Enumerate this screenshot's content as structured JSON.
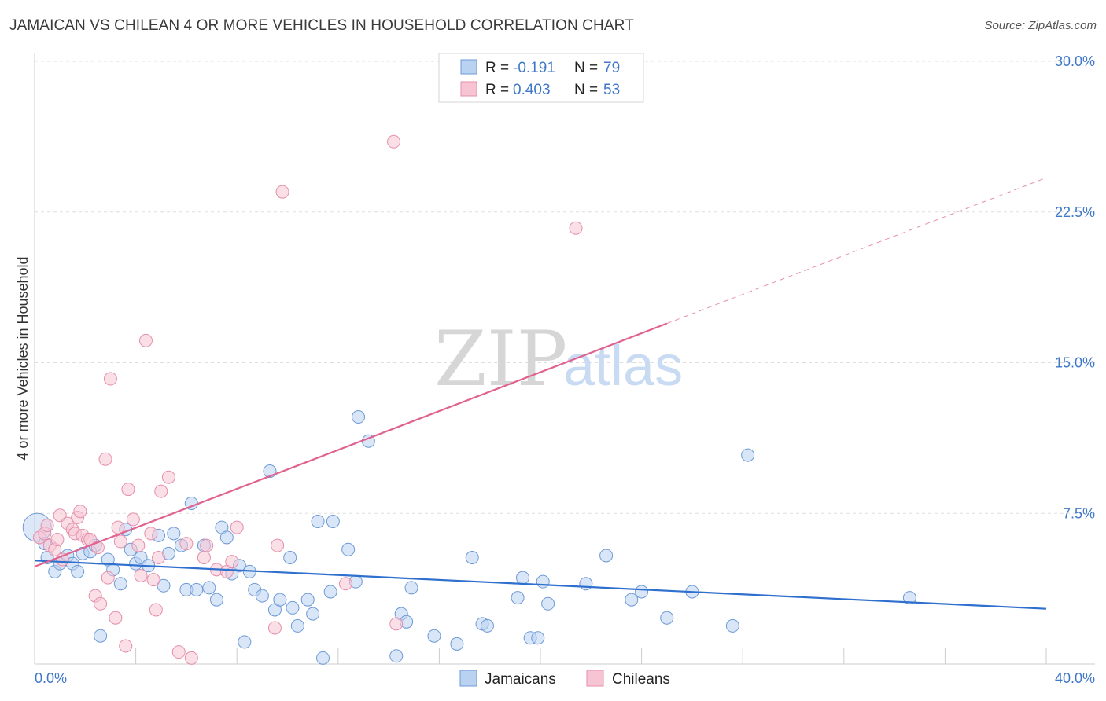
{
  "title": "JAMAICAN VS CHILEAN 4 OR MORE VEHICLES IN HOUSEHOLD CORRELATION CHART",
  "source": "Source: ZipAtlas.com",
  "watermark": {
    "zip": "ZIP",
    "atlas": "atlas"
  },
  "colors": {
    "blue_fill": "#b9d2f2",
    "blue_stroke": "#6d9ad6",
    "blue_line": "#2f6fce",
    "pink_fill": "#f7c4d3",
    "pink_stroke": "#e58fab",
    "pink_line": "#e0628f",
    "label_blue": "#3f78c8",
    "grid": "#dddddd"
  },
  "legend_top": {
    "rows": [
      {
        "r_label": "R =",
        "r_value": "-0.191",
        "n_label": "N =",
        "n_value": "79"
      },
      {
        "r_label": "R =",
        "r_value": "0.403",
        "n_label": "N =",
        "n_value": "53"
      }
    ]
  },
  "legend_bottom": [
    {
      "name": "Jamaicans"
    },
    {
      "name": "Chileans"
    }
  ],
  "chart_data": {
    "type": "scatter",
    "title": "JAMAICAN VS CHILEAN 4 OR MORE VEHICLES IN HOUSEHOLD CORRELATION CHART",
    "xlabel": "",
    "ylabel": "4 or more Vehicles in Household",
    "xlim": [
      0,
      40
    ],
    "ylim": [
      0,
      30
    ],
    "x_tick_labels": [
      "0.0%",
      "40.0%"
    ],
    "y_ticks": [
      7.5,
      15.0,
      22.5,
      30.0
    ],
    "y_tick_labels": [
      "7.5%",
      "15.0%",
      "22.5%",
      "30.0%"
    ],
    "grid": "horizontal dashed",
    "series": [
      {
        "name": "Jamaicans",
        "color": "#b9d2f2",
        "points": [
          [
            0.1,
            6.8
          ],
          [
            0.4,
            6.0
          ],
          [
            0.5,
            5.3
          ],
          [
            0.8,
            4.6
          ],
          [
            1.0,
            5.0
          ],
          [
            1.3,
            5.4
          ],
          [
            1.5,
            5.0
          ],
          [
            1.7,
            4.6
          ],
          [
            1.9,
            5.5
          ],
          [
            2.2,
            5.6
          ],
          [
            2.4,
            5.9
          ],
          [
            2.6,
            1.4
          ],
          [
            2.9,
            5.2
          ],
          [
            3.1,
            4.7
          ],
          [
            3.4,
            4.0
          ],
          [
            3.6,
            6.7
          ],
          [
            3.8,
            5.7
          ],
          [
            4.0,
            5.0
          ],
          [
            4.2,
            5.3
          ],
          [
            4.5,
            4.9
          ],
          [
            4.9,
            6.4
          ],
          [
            5.1,
            3.9
          ],
          [
            5.3,
            5.5
          ],
          [
            5.5,
            6.5
          ],
          [
            5.8,
            5.9
          ],
          [
            6.0,
            3.7
          ],
          [
            6.2,
            8.0
          ],
          [
            6.4,
            3.7
          ],
          [
            6.7,
            5.9
          ],
          [
            6.9,
            3.8
          ],
          [
            7.2,
            3.2
          ],
          [
            7.4,
            6.8
          ],
          [
            7.6,
            6.3
          ],
          [
            7.8,
            4.5
          ],
          [
            8.1,
            4.9
          ],
          [
            8.3,
            1.1
          ],
          [
            8.5,
            4.6
          ],
          [
            8.7,
            3.7
          ],
          [
            9.0,
            3.4
          ],
          [
            9.3,
            9.6
          ],
          [
            9.5,
            2.7
          ],
          [
            9.7,
            3.2
          ],
          [
            10.1,
            5.3
          ],
          [
            10.2,
            2.8
          ],
          [
            10.4,
            1.9
          ],
          [
            10.8,
            3.2
          ],
          [
            11.0,
            2.5
          ],
          [
            11.2,
            7.1
          ],
          [
            11.4,
            0.3
          ],
          [
            11.7,
            3.6
          ],
          [
            11.8,
            7.1
          ],
          [
            12.4,
            5.7
          ],
          [
            12.7,
            4.1
          ],
          [
            12.8,
            12.3
          ],
          [
            13.2,
            11.1
          ],
          [
            14.3,
            0.4
          ],
          [
            14.5,
            2.5
          ],
          [
            14.7,
            2.1
          ],
          [
            14.9,
            3.8
          ],
          [
            15.8,
            1.4
          ],
          [
            16.7,
            1.0
          ],
          [
            17.3,
            5.3
          ],
          [
            17.7,
            2.0
          ],
          [
            17.9,
            1.9
          ],
          [
            19.1,
            3.3
          ],
          [
            19.3,
            4.3
          ],
          [
            19.6,
            1.3
          ],
          [
            19.9,
            1.3
          ],
          [
            20.1,
            4.1
          ],
          [
            20.3,
            3.0
          ],
          [
            21.8,
            4.0
          ],
          [
            22.6,
            5.4
          ],
          [
            23.6,
            3.2
          ],
          [
            24.0,
            3.6
          ],
          [
            25.0,
            2.3
          ],
          [
            26.0,
            3.6
          ],
          [
            27.6,
            1.9
          ],
          [
            28.2,
            10.4
          ],
          [
            34.6,
            3.3
          ]
        ],
        "trend": {
          "x": [
            0,
            40
          ],
          "y": [
            5.15,
            2.75
          ]
        }
      },
      {
        "name": "Chileans",
        "color": "#f7c4d3",
        "points": [
          [
            0.2,
            6.3
          ],
          [
            0.4,
            6.5
          ],
          [
            0.5,
            6.9
          ],
          [
            0.6,
            5.9
          ],
          [
            0.8,
            5.7
          ],
          [
            0.9,
            6.2
          ],
          [
            1.0,
            7.4
          ],
          [
            1.1,
            5.2
          ],
          [
            1.3,
            7.0
          ],
          [
            1.5,
            6.7
          ],
          [
            1.6,
            6.5
          ],
          [
            1.7,
            7.3
          ],
          [
            1.8,
            7.6
          ],
          [
            1.9,
            6.4
          ],
          [
            2.1,
            6.2
          ],
          [
            2.2,
            6.2
          ],
          [
            2.4,
            3.4
          ],
          [
            2.5,
            5.8
          ],
          [
            2.6,
            3.0
          ],
          [
            2.8,
            10.2
          ],
          [
            2.9,
            4.3
          ],
          [
            3.0,
            14.2
          ],
          [
            3.2,
            2.3
          ],
          [
            3.3,
            6.8
          ],
          [
            3.4,
            6.1
          ],
          [
            3.6,
            0.9
          ],
          [
            3.7,
            8.7
          ],
          [
            3.9,
            7.2
          ],
          [
            4.1,
            5.9
          ],
          [
            4.2,
            4.4
          ],
          [
            4.4,
            16.1
          ],
          [
            4.6,
            6.5
          ],
          [
            4.7,
            4.2
          ],
          [
            4.8,
            2.7
          ],
          [
            4.9,
            5.3
          ],
          [
            5.0,
            8.6
          ],
          [
            5.3,
            9.3
          ],
          [
            5.7,
            0.6
          ],
          [
            6.0,
            6.0
          ],
          [
            6.2,
            0.3
          ],
          [
            6.7,
            5.3
          ],
          [
            6.8,
            5.9
          ],
          [
            7.2,
            4.7
          ],
          [
            7.6,
            4.6
          ],
          [
            7.8,
            5.1
          ],
          [
            8.0,
            6.8
          ],
          [
            9.5,
            1.8
          ],
          [
            9.6,
            5.9
          ],
          [
            9.8,
            23.5
          ],
          [
            12.3,
            4.0
          ],
          [
            14.2,
            26.0
          ],
          [
            14.3,
            2.0
          ],
          [
            21.4,
            21.7
          ]
        ],
        "trend": {
          "x": [
            0,
            25
          ],
          "y": [
            4.85,
            16.95
          ]
        },
        "trend_extension": {
          "x": [
            25,
            40
          ],
          "y": [
            16.95,
            24.2
          ]
        }
      }
    ]
  }
}
